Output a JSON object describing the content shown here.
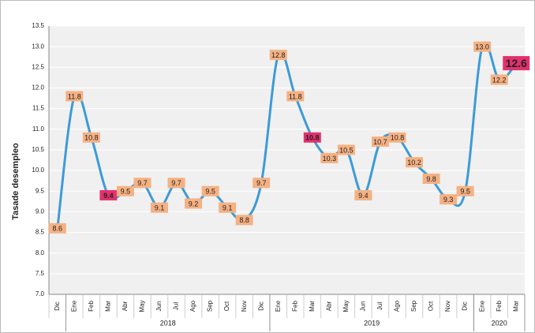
{
  "chart_data": {
    "type": "line",
    "y_label": "Tasade desempleo",
    "categories": [
      "Dic",
      "Ene",
      "Feb",
      "Mar",
      "Abr",
      "May",
      "Jun",
      "Jul",
      "Ago",
      "Sep",
      "Oct",
      "Nov",
      "Dic",
      "Ene",
      "Feb",
      "Mar",
      "Abr",
      "May",
      "Jun",
      "Jul",
      "Ago",
      "Sep",
      "Oct",
      "Nov",
      "Dic",
      "Ene",
      "Feb",
      "Mar"
    ],
    "groups": [
      {
        "label": "2018",
        "from": 1,
        "to": 12
      },
      {
        "label": "2019",
        "from": 13,
        "to": 24
      },
      {
        "label": "2020",
        "from": 25,
        "to": 27
      }
    ],
    "series": [
      {
        "name": "Tasa de desempleo",
        "color": "#3d9bd6",
        "values": [
          8.6,
          11.8,
          10.8,
          9.4,
          9.5,
          9.7,
          9.1,
          9.7,
          9.2,
          9.5,
          9.1,
          8.8,
          9.7,
          12.8,
          11.8,
          10.8,
          10.3,
          10.5,
          9.4,
          10.7,
          10.8,
          10.2,
          9.8,
          9.3,
          9.5,
          13.0,
          12.2,
          12.6
        ],
        "value_labels": [
          "8.6",
          "11.8",
          "10.8",
          "9.4",
          "9.5",
          "9.7",
          "9.1",
          "9.7",
          "9.2",
          "9.5",
          "9.1",
          "8.8",
          "9.7",
          "12.8",
          "11.8",
          "10.8",
          "10.3",
          "10.5",
          "9.4",
          "10.7",
          "10.8",
          "10.2",
          "9.8",
          "9.3",
          "9.5",
          "13.0",
          "12.2",
          "12.6"
        ]
      }
    ],
    "label_color": "#f5b183",
    "highlight_color": "#e3306e",
    "highlight": [
      3,
      15,
      27
    ],
    "ylim": [
      7.0,
      13.5
    ],
    "yticks": [
      {
        "value": 7,
        "label": "7.0"
      },
      {
        "value": 7.5,
        "label": "7.5"
      },
      {
        "value": 8,
        "label": "8.0"
      },
      {
        "value": 8.5,
        "label": "8.5"
      },
      {
        "value": 9,
        "label": "9.0"
      },
      {
        "value": 9.5,
        "label": "9.5"
      },
      {
        "value": 10,
        "label": "10.0"
      },
      {
        "value": 10.5,
        "label": "10.5"
      },
      {
        "value": 11,
        "label": "11.0"
      },
      {
        "value": 11.5,
        "label": "11.5"
      },
      {
        "value": 12,
        "label": "12.0"
      },
      {
        "value": 12.5,
        "label": "12.5"
      },
      {
        "value": 13,
        "label": "13.0"
      },
      {
        "value": 13.5,
        "label": "13.5"
      }
    ],
    "grid": true
  }
}
